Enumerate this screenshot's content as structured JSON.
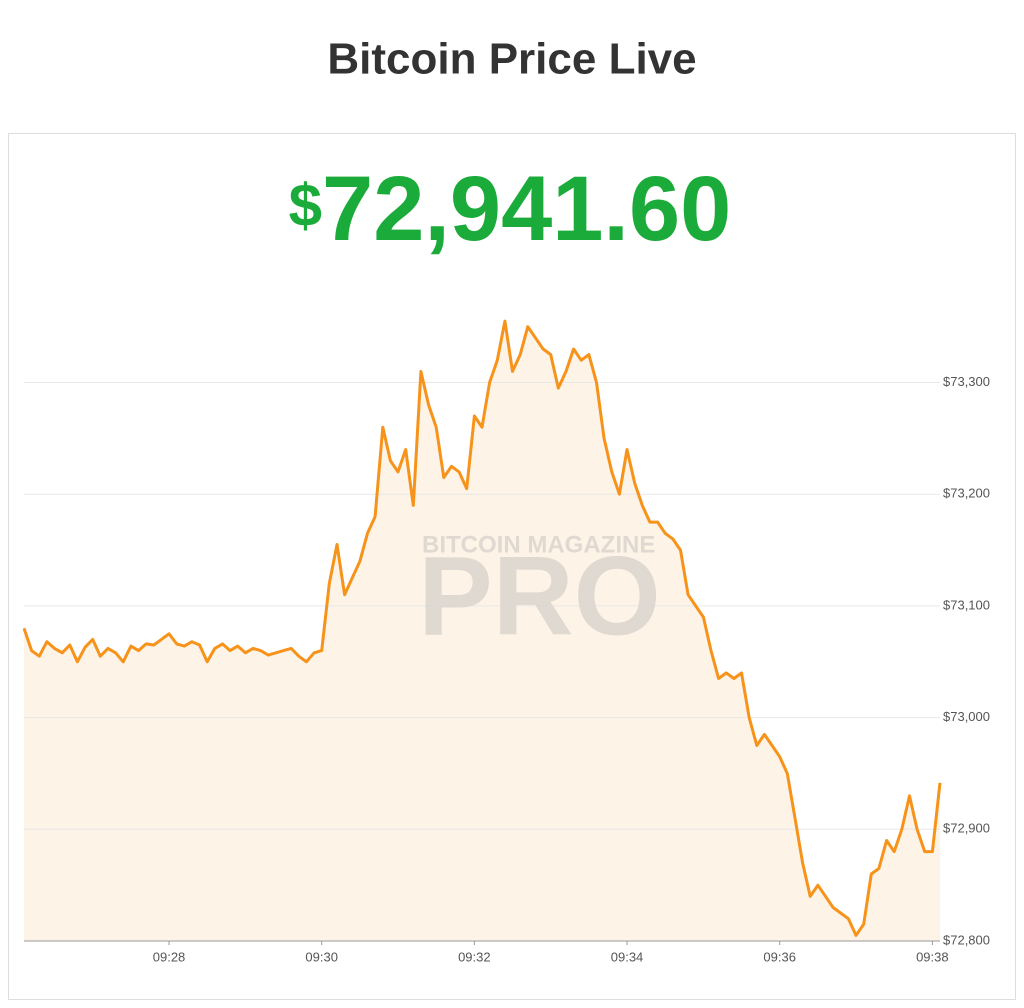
{
  "chart_data": {
    "type": "area",
    "title": "Bitcoin Price Live",
    "currency": "$",
    "price": "72,941.60",
    "watermark": [
      "BITCOIN MAGAZINE",
      "PRO"
    ],
    "color": "#f7931a",
    "fill": "#fdf3e6",
    "price_color": "#1aab3a",
    "grid": true,
    "xlim": [
      566.1,
      578.1
    ],
    "xticks": [
      {
        "value": 568,
        "label": "09:28"
      },
      {
        "value": 570,
        "label": "09:30"
      },
      {
        "value": 572,
        "label": "09:32"
      },
      {
        "value": 574,
        "label": "09:34"
      },
      {
        "value": 576,
        "label": "09:36"
      },
      {
        "value": 578,
        "label": "09:38"
      }
    ],
    "ylim": [
      72800,
      73390
    ],
    "yticks": [
      {
        "value": 72800,
        "label": "$72,800"
      },
      {
        "value": 72900,
        "label": "$72,900"
      },
      {
        "value": 73000,
        "label": "$73,000"
      },
      {
        "value": 73100,
        "label": "$73,100"
      },
      {
        "value": 73200,
        "label": "$73,200"
      },
      {
        "value": 73300,
        "label": "$73,300"
      }
    ],
    "x": [
      566.1,
      566.2,
      566.3,
      566.4,
      566.5,
      566.6,
      566.7,
      566.8,
      566.9,
      567.0,
      567.1,
      567.2,
      567.3,
      567.4,
      567.5,
      567.6,
      567.7,
      567.8,
      567.9,
      568.0,
      568.1,
      568.2,
      568.3,
      568.4,
      568.5,
      568.6,
      568.7,
      568.8,
      568.9,
      569.0,
      569.1,
      569.2,
      569.3,
      569.4,
      569.5,
      569.6,
      569.7,
      569.8,
      569.9,
      570.0,
      570.1,
      570.2,
      570.3,
      570.4,
      570.5,
      570.6,
      570.7,
      570.8,
      570.9,
      571.0,
      571.1,
      571.2,
      571.3,
      571.4,
      571.5,
      571.6,
      571.7,
      571.8,
      571.9,
      572.0,
      572.1,
      572.2,
      572.3,
      572.4,
      572.5,
      572.6,
      572.7,
      572.8,
      572.9,
      573.0,
      573.1,
      573.2,
      573.3,
      573.4,
      573.5,
      573.6,
      573.7,
      573.8,
      573.9,
      574.0,
      574.1,
      574.2,
      574.3,
      574.4,
      574.5,
      574.6,
      574.7,
      574.8,
      574.9,
      575.0,
      575.1,
      575.2,
      575.3,
      575.4,
      575.5,
      575.6,
      575.7,
      575.8,
      575.9,
      576.0,
      576.1,
      576.2,
      576.3,
      576.4,
      576.5,
      576.6,
      576.7,
      576.8,
      576.9,
      577.0,
      577.1,
      577.2,
      577.3,
      577.4,
      577.5,
      577.6,
      577.7,
      577.8,
      577.9,
      578.0,
      578.1
    ],
    "values": [
      73080,
      73060,
      73055,
      73068,
      73062,
      73058,
      73065,
      73050,
      73063,
      73070,
      73055,
      73062,
      73058,
      73050,
      73064,
      73060,
      73066,
      73065,
      73070,
      73075,
      73066,
      73064,
      73068,
      73065,
      73050,
      73062,
      73066,
      73060,
      73064,
      73058,
      73062,
      73060,
      73056,
      73058,
      73060,
      73062,
      73055,
      73050,
      73058,
      73060,
      73120,
      73155,
      73110,
      73125,
      73140,
      73165,
      73180,
      73260,
      73230,
      73220,
      73240,
      73190,
      73310,
      73280,
      73260,
      73215,
      73225,
      73220,
      73205,
      73270,
      73260,
      73300,
      73320,
      73355,
      73310,
      73325,
      73350,
      73340,
      73330,
      73325,
      73295,
      73310,
      73330,
      73320,
      73325,
      73300,
      73250,
      73220,
      73200,
      73240,
      73210,
      73190,
      73175,
      73175,
      73165,
      73160,
      73150,
      73110,
      73100,
      73090,
      73060,
      73035,
      73040,
      73035,
      73040,
      73000,
      72975,
      72985,
      72975,
      72965,
      72950,
      72910,
      72870,
      72840,
      72850,
      72840,
      72830,
      72825,
      72820,
      72805,
      72815,
      72860,
      72865,
      72890,
      72880,
      72900,
      72930,
      72900,
      72880,
      72880,
      72941.6
    ]
  }
}
